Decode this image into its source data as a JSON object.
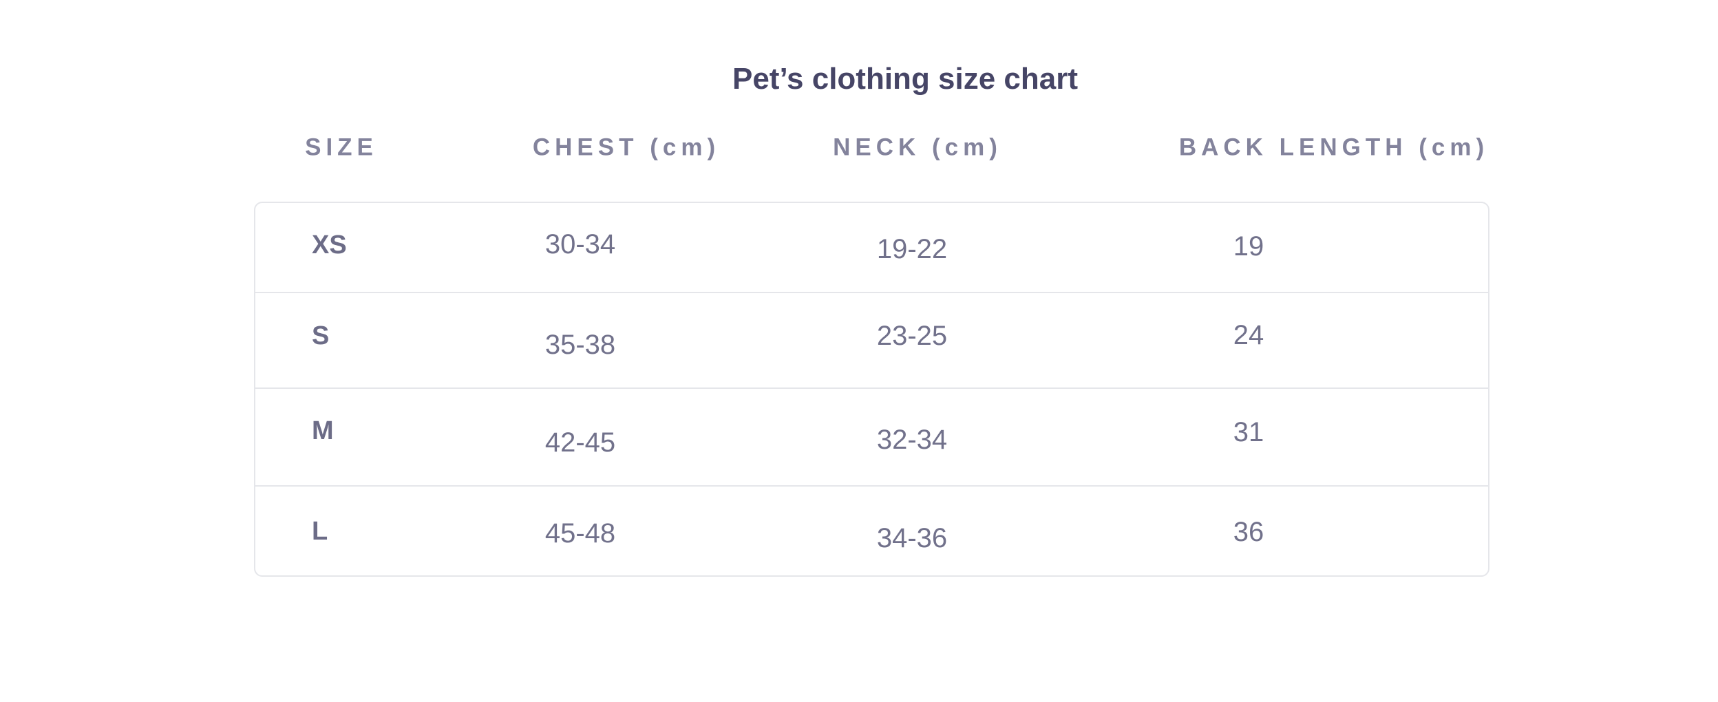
{
  "page": {
    "background": "#FFFFFF"
  },
  "chart_data": {
    "type": "table",
    "title": "Pet’s clothing size chart",
    "columns": [
      {
        "label": "SIZE"
      },
      {
        "label": "CHEST (cm)"
      },
      {
        "label": "NECK (cm)"
      },
      {
        "label": "BACK LENGTH (cm)"
      }
    ],
    "rows": [
      {
        "size": "XS",
        "chest": "30-34",
        "neck": "19-22",
        "back_length": "19"
      },
      {
        "size": "S",
        "chest": "35-38",
        "neck": "23-25",
        "back_length": "24"
      },
      {
        "size": "M",
        "chest": "42-45",
        "neck": "32-34",
        "back_length": "31"
      },
      {
        "size": "L",
        "chest": "45-48",
        "neck": "34-36",
        "back_length": "36"
      }
    ],
    "layout": {
      "header_row_position": "above-table",
      "grid": "horizontal-dividers-only",
      "corner_style": "rounded"
    },
    "colors": {
      "title": "#464566",
      "header": "#83839C",
      "size_label": "#6C6C87",
      "value": "#71718B",
      "border": "#E5E6EA",
      "background": "#FFFFFF"
    }
  }
}
